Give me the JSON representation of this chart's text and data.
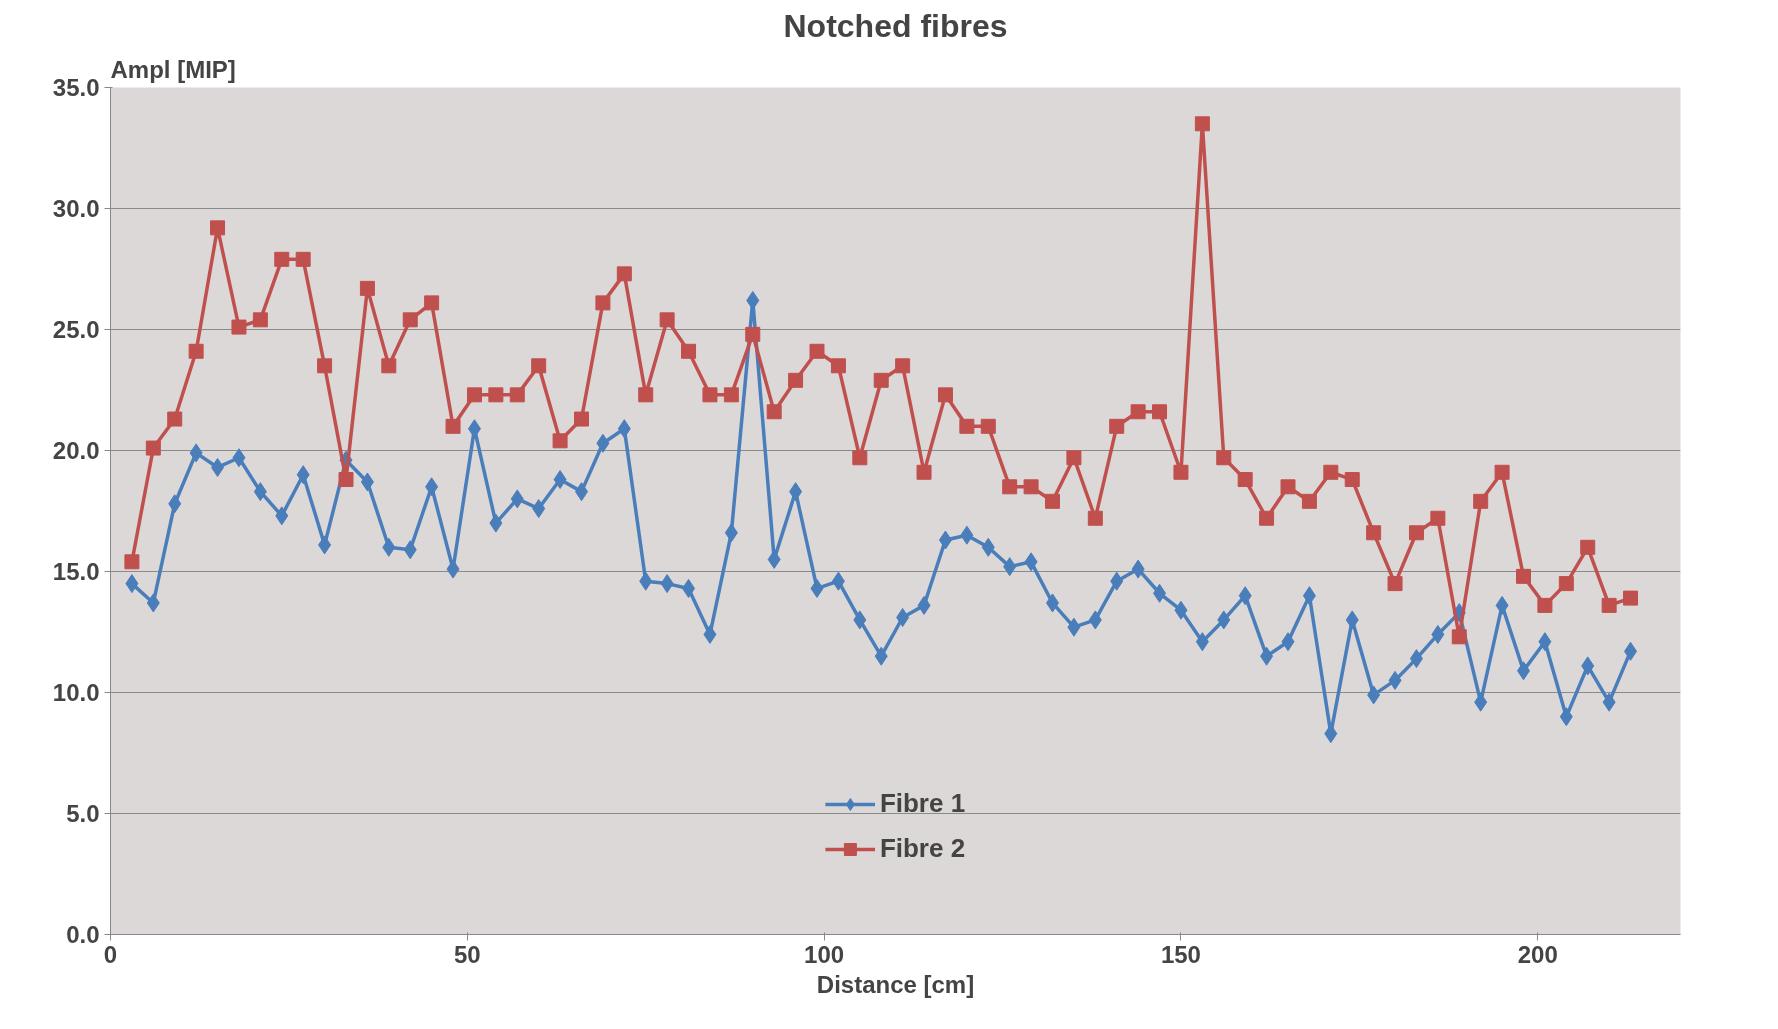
{
  "chart_data": {
    "type": "line",
    "title": "Notched fibres",
    "xlabel": "Distance [cm]",
    "ylabel": "Ampl  [MIP]",
    "x": [
      3,
      6,
      9,
      12,
      15,
      18,
      21,
      24,
      27,
      30,
      33,
      36,
      39,
      42,
      45,
      48,
      51,
      54,
      57,
      60,
      63,
      66,
      69,
      72,
      75,
      78,
      81,
      84,
      87,
      90,
      93,
      96,
      99,
      102,
      105,
      108,
      111,
      114,
      117,
      120,
      123,
      126,
      129,
      132,
      135,
      138,
      141,
      144,
      147,
      150,
      153,
      156,
      159,
      162,
      165,
      168,
      171,
      174,
      177,
      180,
      183,
      186,
      189,
      192,
      195,
      198,
      201,
      204,
      207,
      210,
      213
    ],
    "series": [
      {
        "name": "Fibre 1",
        "color": "#4a7ebb",
        "marker": "diamond",
        "values": [
          14.5,
          13.7,
          17.8,
          19.9,
          19.3,
          19.7,
          18.3,
          17.3,
          19.0,
          16.1,
          19.6,
          18.7,
          16.0,
          15.9,
          18.5,
          15.1,
          20.9,
          17.0,
          18.0,
          17.6,
          18.8,
          18.3,
          20.3,
          20.9,
          14.6,
          14.5,
          14.3,
          12.4,
          16.6,
          26.2,
          15.5,
          18.3,
          14.3,
          14.6,
          13.0,
          11.5,
          13.1,
          13.6,
          16.3,
          16.5,
          16.0,
          15.2,
          15.4,
          13.7,
          12.7,
          13.0,
          14.6,
          15.1,
          14.1,
          13.4,
          12.1,
          13.0,
          14.0,
          11.5,
          12.1,
          14.0,
          8.3,
          13.0,
          9.9,
          10.5,
          11.4,
          12.4,
          13.3,
          9.6,
          13.6,
          10.9,
          12.1,
          9.0,
          11.1,
          9.6,
          11.7
        ]
      },
      {
        "name": "Fibre 2",
        "color": "#c0504d",
        "marker": "square",
        "values": [
          15.4,
          20.1,
          21.3,
          24.1,
          29.2,
          25.1,
          25.4,
          27.9,
          27.9,
          23.5,
          18.8,
          26.7,
          23.5,
          25.4,
          26.1,
          21.0,
          22.3,
          22.3,
          22.3,
          23.5,
          20.4,
          21.3,
          26.1,
          27.3,
          22.3,
          25.4,
          24.1,
          22.3,
          22.3,
          24.8,
          21.6,
          22.9,
          24.1,
          23.5,
          19.7,
          22.9,
          23.5,
          19.1,
          22.3,
          21.0,
          21.0,
          18.5,
          18.5,
          17.9,
          19.7,
          17.2,
          21.0,
          21.6,
          21.6,
          19.1,
          33.5,
          19.7,
          18.8,
          17.2,
          18.5,
          17.9,
          19.1,
          18.8,
          16.6,
          14.5,
          16.6,
          17.2,
          12.3,
          17.9,
          19.1,
          14.8,
          13.6,
          14.5,
          16.0,
          13.6,
          13.9
        ]
      }
    ],
    "xlim": [
      0,
      220
    ],
    "xticks": [
      0,
      50,
      100,
      150,
      200
    ],
    "ylim": [
      0,
      35
    ],
    "yticks": [
      {
        "value": 0,
        "label": "0.0"
      },
      {
        "value": 5,
        "label": "5.0"
      },
      {
        "value": 10,
        "label": "10.0"
      },
      {
        "value": 15,
        "label": "15.0"
      },
      {
        "value": 20,
        "label": "20.0"
      },
      {
        "value": 25,
        "label": "25.0"
      },
      {
        "value": 30,
        "label": "30.0"
      },
      {
        "value": 35,
        "label": "35.0"
      }
    ],
    "grid": "y",
    "legend": "bottom",
    "line_style": "solid"
  }
}
